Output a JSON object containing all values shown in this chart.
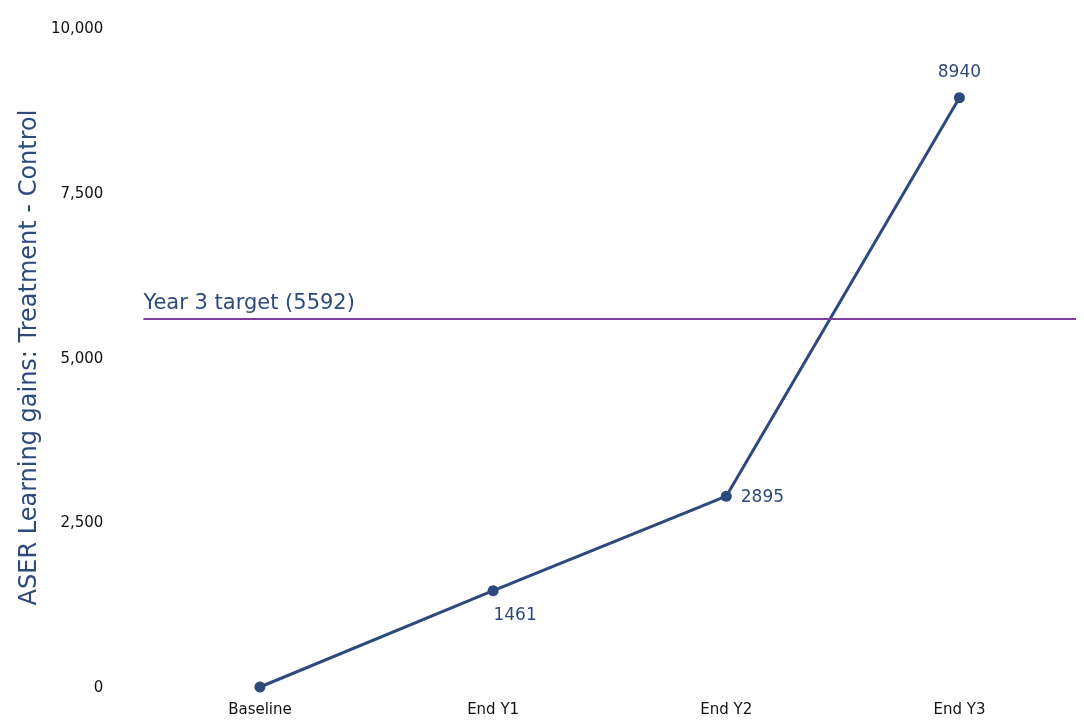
{
  "chart_data": {
    "type": "line",
    "ylabel": "ASER Learning gains: Treatment - Control",
    "categories": [
      "Baseline",
      "End Y1",
      "End Y2",
      "End Y3"
    ],
    "series": [
      {
        "color": "#2e4a7d",
        "values": [
          0,
          1461,
          2895,
          8940
        ],
        "value_labels": [
          null,
          "1461",
          "2895",
          "8940"
        ]
      }
    ],
    "ylim": [
      0,
      10000
    ],
    "yticks": [
      0,
      {
        "value": 2500,
        "label": "2,500"
      },
      {
        "value": 5000,
        "label": "5,000"
      },
      {
        "value": 7500,
        "label": "7,500"
      },
      {
        "value": 10000,
        "label": "10,000"
      }
    ],
    "grid": false,
    "marker": "circle",
    "line_style": "solid",
    "ref_lines": [
      {
        "axis": "y",
        "value": 5592,
        "label": "Year 3 target (5592)",
        "color": "#7b3f9e",
        "line_style": "solid"
      }
    ]
  }
}
